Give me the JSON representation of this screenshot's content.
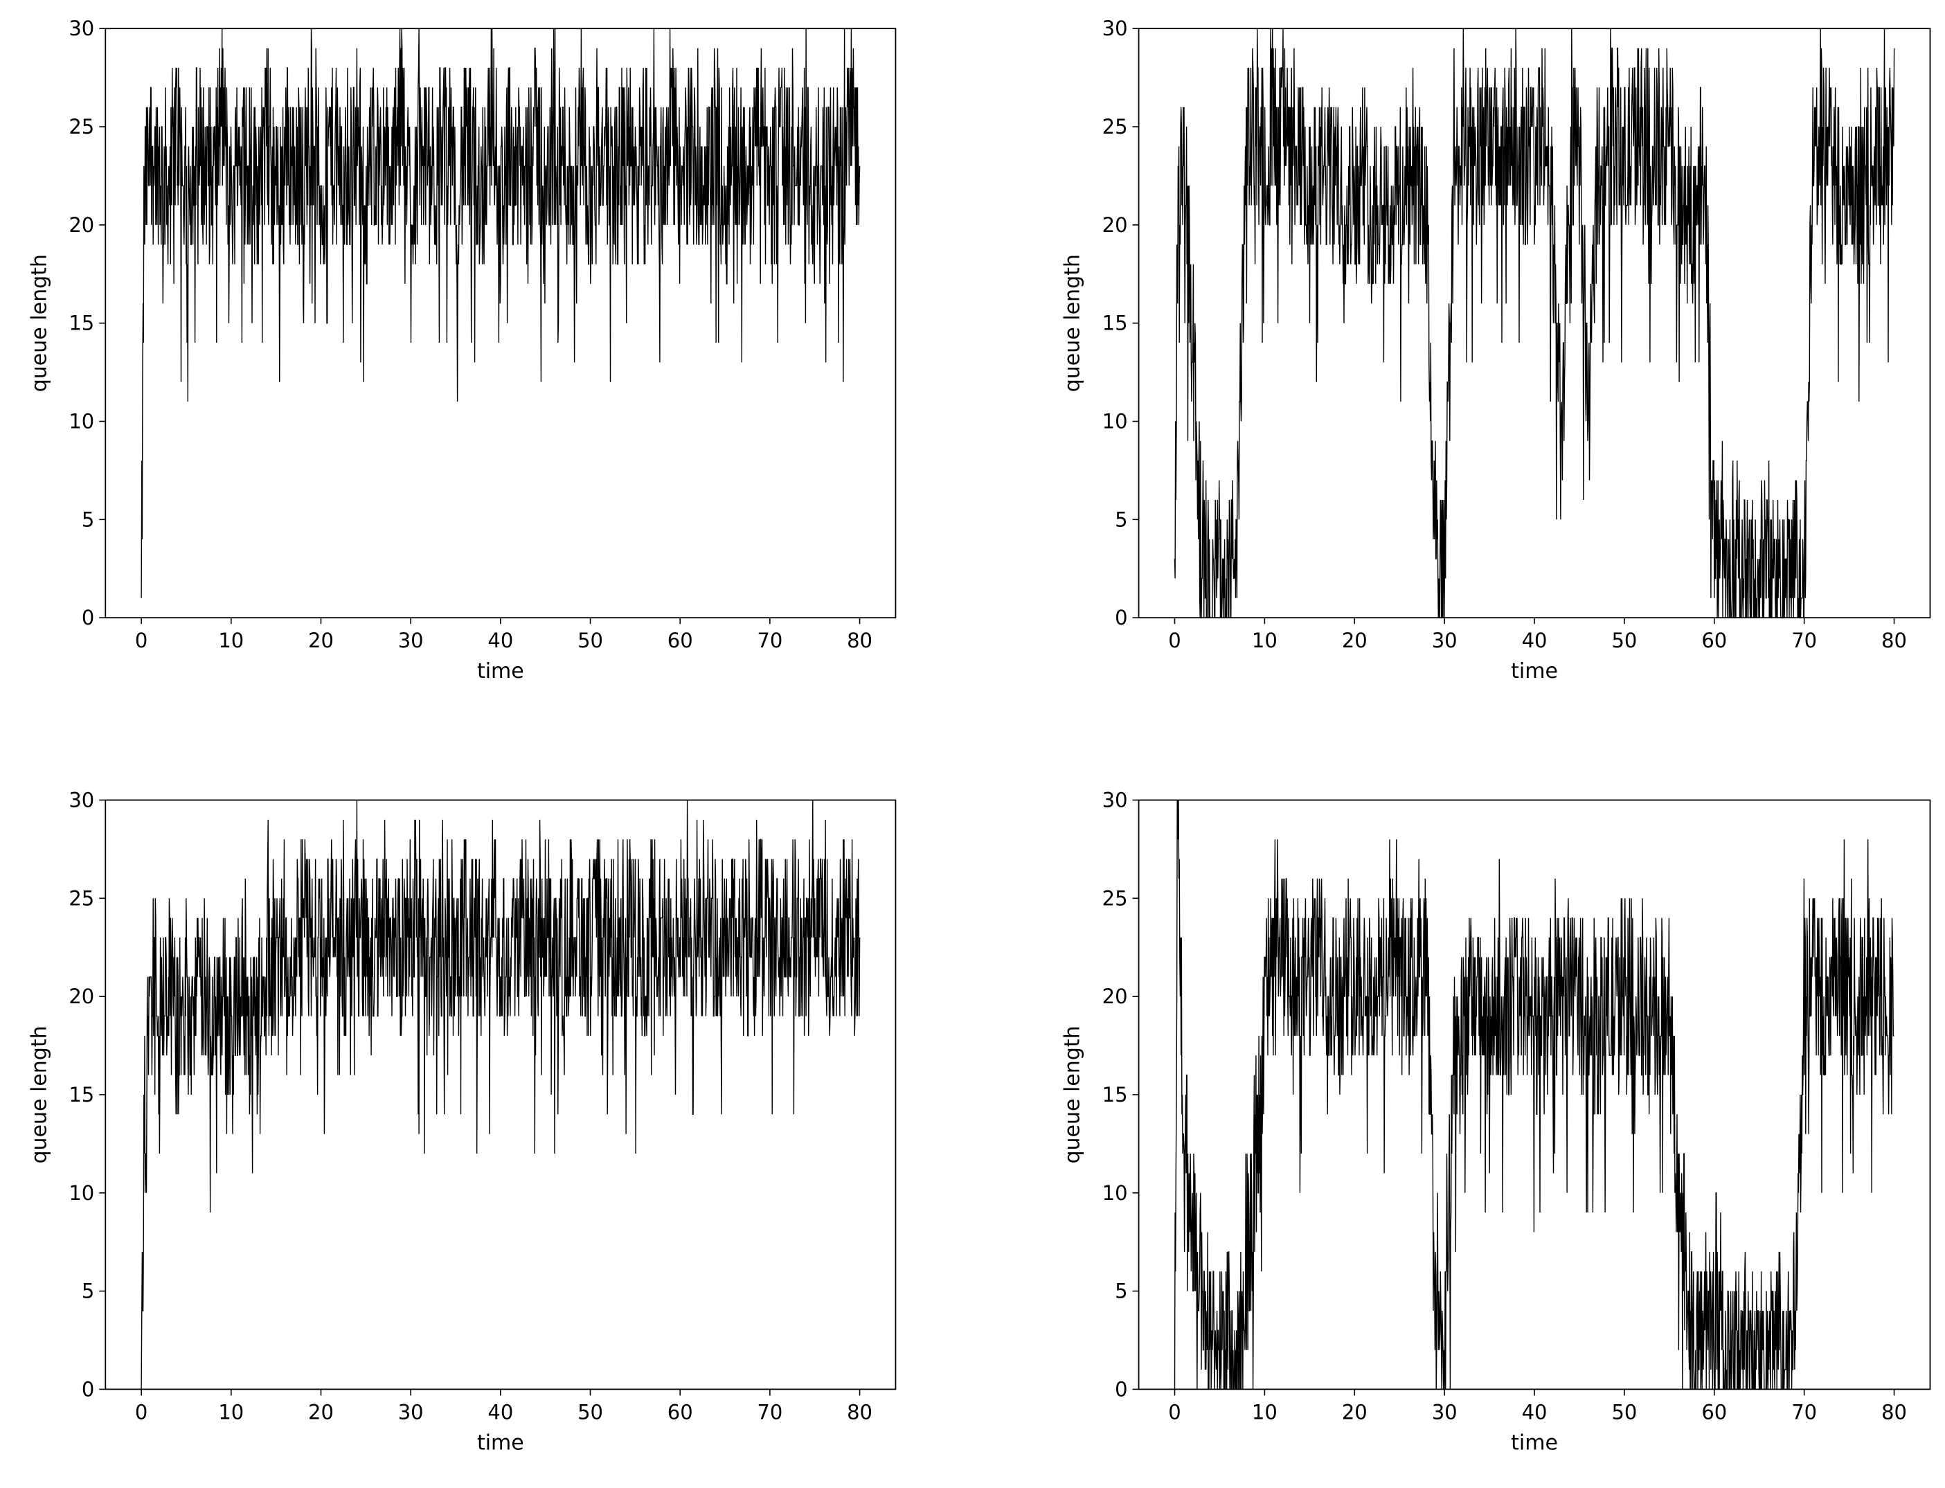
{
  "chart_data": [
    {
      "type": "line",
      "xlabel": "time",
      "ylabel": "queue length",
      "xlim": [
        -4,
        84
      ],
      "ylim": [
        0,
        30
      ],
      "xticks": [
        0,
        10,
        20,
        30,
        40,
        50,
        60,
        70,
        80
      ],
      "yticks": [
        0,
        5,
        10,
        15,
        20,
        25,
        30
      ],
      "series": [
        {
          "color": "#000000",
          "x": [
            0,
            0.3,
            1,
            2,
            3,
            4,
            5,
            6,
            7,
            8,
            9,
            10,
            11,
            12,
            13,
            14,
            15,
            16,
            17,
            18,
            19,
            20,
            21,
            22,
            23,
            24,
            25,
            26,
            27,
            28,
            29,
            30,
            31,
            32,
            33,
            34,
            35,
            36,
            37,
            38,
            39,
            40,
            41,
            42,
            43,
            44,
            45,
            46,
            47,
            48,
            49,
            50,
            51,
            52,
            53,
            54,
            55,
            56,
            57,
            58,
            59,
            60,
            61,
            62,
            63,
            64,
            65,
            66,
            67,
            68,
            69,
            70,
            71,
            72,
            73,
            74,
            75,
            76,
            77,
            78,
            79,
            80
          ],
          "y": [
            0,
            21,
            24,
            23,
            22,
            25,
            21,
            24,
            23,
            22,
            26,
            21,
            24,
            23,
            22,
            25,
            21,
            24,
            23,
            22,
            26,
            21,
            24,
            23,
            22,
            25,
            21,
            24,
            23,
            22,
            26,
            21,
            24,
            23,
            22,
            25,
            21,
            24,
            23,
            22,
            26,
            21,
            24,
            23,
            22,
            25,
            21,
            24,
            23,
            22,
            26,
            21,
            24,
            23,
            22,
            25,
            21,
            24,
            23,
            22,
            26,
            21,
            24,
            23,
            22,
            25,
            21,
            24,
            23,
            22,
            26,
            21,
            24,
            23,
            22,
            25,
            21,
            24,
            23,
            22,
            26,
            23
          ]
        }
      ]
    },
    {
      "type": "line",
      "xlabel": "time",
      "ylabel": "queue length",
      "xlim": [
        -4,
        84
      ],
      "ylim": [
        0,
        30
      ],
      "xticks": [
        0,
        10,
        20,
        30,
        40,
        50,
        60,
        70,
        80
      ],
      "yticks": [
        0,
        5,
        10,
        15,
        20,
        25,
        30
      ],
      "series": [
        {
          "color": "#000000",
          "x": [
            0,
            0.3,
            1,
            2,
            3,
            4,
            5,
            6,
            7,
            8,
            9,
            10,
            11,
            12,
            13,
            14,
            15,
            16,
            17,
            18,
            19,
            20,
            21,
            22,
            23,
            24,
            25,
            26,
            27,
            28,
            29,
            30,
            31,
            32,
            33,
            34,
            35,
            36,
            37,
            38,
            39,
            40,
            41,
            42,
            43,
            44,
            45,
            46,
            47,
            48,
            49,
            50,
            51,
            52,
            53,
            54,
            55,
            56,
            57,
            58,
            59,
            60,
            61,
            62,
            63,
            64,
            65,
            66,
            67,
            68,
            69,
            70,
            71,
            72,
            73,
            74,
            75,
            76,
            77,
            78,
            79,
            80
          ],
          "y": [
            0,
            19,
            24,
            14,
            4,
            1,
            3,
            2,
            5,
            24,
            25,
            24,
            25,
            26,
            22,
            23,
            21,
            22,
            23,
            22,
            21,
            22,
            23,
            21,
            22,
            20,
            22,
            21,
            22,
            20,
            3,
            2,
            22,
            24,
            23,
            25,
            24,
            23,
            24,
            25,
            23,
            24,
            25,
            21,
            8,
            24,
            23,
            10,
            23,
            24,
            25,
            23,
            24,
            25,
            24,
            23,
            24,
            22,
            20,
            21,
            23,
            4,
            2,
            1,
            3,
            1,
            2,
            3,
            2,
            1,
            3,
            2,
            24,
            25,
            23,
            22,
            20,
            21,
            22,
            24,
            23,
            25
          ]
        }
      ]
    },
    {
      "type": "line",
      "xlabel": "time",
      "ylabel": "queue length",
      "xlim": [
        -4,
        84
      ],
      "ylim": [
        0,
        30
      ],
      "xticks": [
        0,
        10,
        20,
        30,
        40,
        50,
        60,
        70,
        80
      ],
      "yticks": [
        0,
        5,
        10,
        15,
        20,
        25,
        30
      ],
      "series": [
        {
          "color": "#000000",
          "x": [
            0,
            0.3,
            1,
            2,
            3,
            4,
            5,
            6,
            7,
            8,
            9,
            10,
            11,
            12,
            13,
            14,
            15,
            16,
            17,
            18,
            19,
            20,
            21,
            22,
            23,
            24,
            25,
            26,
            27,
            28,
            29,
            30,
            31,
            32,
            33,
            34,
            35,
            36,
            37,
            38,
            39,
            40,
            41,
            42,
            43,
            44,
            45,
            46,
            47,
            48,
            49,
            50,
            51,
            52,
            53,
            54,
            55,
            56,
            57,
            58,
            59,
            60,
            61,
            62,
            63,
            64,
            65,
            66,
            67,
            68,
            69,
            70,
            71,
            72,
            73,
            74,
            75,
            76,
            77,
            78,
            79,
            80
          ],
          "y": [
            0,
            12,
            24,
            19,
            21,
            18,
            20,
            19,
            21,
            18,
            20,
            19,
            21,
            18,
            21,
            22,
            21,
            23,
            22,
            24,
            23,
            22,
            24,
            23,
            22,
            24,
            23,
            22,
            24,
            23,
            22,
            24,
            23,
            22,
            24,
            23,
            22,
            24,
            23,
            22,
            24,
            23,
            22,
            24,
            23,
            22,
            24,
            23,
            22,
            24,
            23,
            22,
            24,
            23,
            22,
            24,
            23,
            22,
            24,
            23,
            22,
            24,
            23,
            22,
            24,
            23,
            22,
            24,
            23,
            22,
            24,
            23,
            22,
            24,
            23,
            22,
            24,
            23,
            22,
            24,
            23,
            22
          ]
        }
      ]
    },
    {
      "type": "line",
      "xlabel": "time",
      "ylabel": "queue length",
      "xlim": [
        -4,
        84
      ],
      "ylim": [
        0,
        30
      ],
      "xticks": [
        0,
        10,
        20,
        30,
        40,
        50,
        60,
        70,
        80
      ],
      "yticks": [
        0,
        5,
        10,
        15,
        20,
        25,
        30
      ],
      "series": [
        {
          "color": "#000000",
          "x": [
            0,
            0.3,
            1,
            2,
            3,
            4,
            5,
            6,
            7,
            8,
            9,
            10,
            11,
            12,
            13,
            14,
            15,
            16,
            17,
            18,
            19,
            20,
            21,
            22,
            23,
            24,
            25,
            26,
            27,
            28,
            29,
            30,
            31,
            32,
            33,
            34,
            35,
            36,
            37,
            38,
            39,
            40,
            41,
            42,
            43,
            44,
            45,
            46,
            47,
            48,
            49,
            50,
            51,
            52,
            53,
            54,
            55,
            56,
            57,
            58,
            59,
            60,
            61,
            62,
            63,
            64,
            65,
            66,
            67,
            68,
            69,
            70,
            71,
            72,
            73,
            74,
            75,
            76,
            77,
            78,
            79,
            80
          ],
          "y": [
            0,
            30,
            14,
            9,
            5,
            3,
            2,
            3,
            1,
            6,
            10,
            20,
            21,
            22,
            21,
            20,
            21,
            22,
            21,
            20,
            21,
            22,
            21,
            20,
            21,
            22,
            21,
            20,
            21,
            22,
            4,
            2,
            16,
            19,
            20,
            19,
            18,
            20,
            19,
            21,
            20,
            19,
            18,
            20,
            19,
            21,
            20,
            19,
            18,
            20,
            19,
            21,
            20,
            19,
            18,
            20,
            19,
            10,
            5,
            3,
            2,
            4,
            2,
            1,
            3,
            1,
            2,
            1,
            3,
            2,
            4,
            20,
            21,
            20,
            19,
            21,
            20,
            19,
            21,
            20,
            21,
            20
          ]
        }
      ]
    }
  ]
}
